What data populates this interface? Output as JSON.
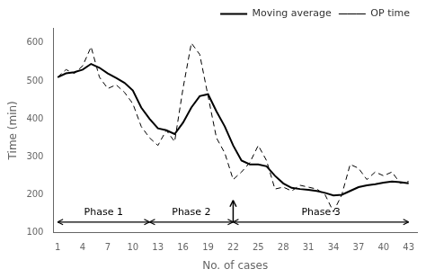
{
  "chart_data": {
    "type": "line",
    "x": [
      1,
      2,
      3,
      4,
      5,
      6,
      7,
      8,
      9,
      10,
      11,
      12,
      13,
      14,
      15,
      16,
      17,
      18,
      19,
      20,
      21,
      22,
      23,
      24,
      25,
      26,
      27,
      28,
      29,
      30,
      31,
      32,
      33,
      34,
      35,
      36,
      37,
      38,
      39,
      40,
      41,
      42,
      43
    ],
    "series": [
      {
        "name": "OP time",
        "color": "#000000",
        "line_style": "dashed",
        "values": [
          510,
          530,
          520,
          540,
          590,
          510,
          480,
          490,
          470,
          440,
          380,
          350,
          330,
          370,
          340,
          480,
          600,
          570,
          460,
          350,
          310,
          240,
          260,
          285,
          330,
          290,
          215,
          220,
          210,
          225,
          220,
          215,
          200,
          155,
          200,
          280,
          270,
          240,
          260,
          250,
          260,
          230,
          235
        ]
      },
      {
        "name": "Moving average",
        "color": "#000000",
        "line_style": "solid",
        "values": [
          510,
          520,
          523,
          530,
          545,
          535,
          520,
          508,
          495,
          475,
          430,
          400,
          375,
          370,
          360,
          390,
          430,
          460,
          465,
          420,
          380,
          330,
          290,
          280,
          280,
          275,
          250,
          230,
          218,
          215,
          213,
          210,
          205,
          198,
          200,
          210,
          220,
          225,
          228,
          232,
          235,
          233,
          230
        ]
      }
    ],
    "xlabel": "No. of cases",
    "ylabel": "Time (min)",
    "xlim": [
      0.5,
      44
    ],
    "ylim": [
      100,
      640
    ],
    "xticks": [
      1,
      4,
      7,
      10,
      13,
      16,
      19,
      22,
      25,
      28,
      31,
      34,
      37,
      40,
      43
    ],
    "yticks": [
      100,
      200,
      300,
      400,
      500,
      600
    ],
    "grid": false,
    "legend": "upper right",
    "annotations": [
      {
        "text": "Phase 1",
        "x_start": 1,
        "x_end": 12,
        "y": 128,
        "text_y": 140
      },
      {
        "text": "Phase 2",
        "x_start": 12,
        "x_end": 22,
        "y": 128,
        "text_y": 140
      },
      {
        "text": "Phase 3",
        "x_start": 22,
        "x_end": 43,
        "y": 128,
        "text_y": 140
      },
      {
        "arrow": "up",
        "x": 22,
        "y_start": 128,
        "y_end": 185
      }
    ]
  }
}
